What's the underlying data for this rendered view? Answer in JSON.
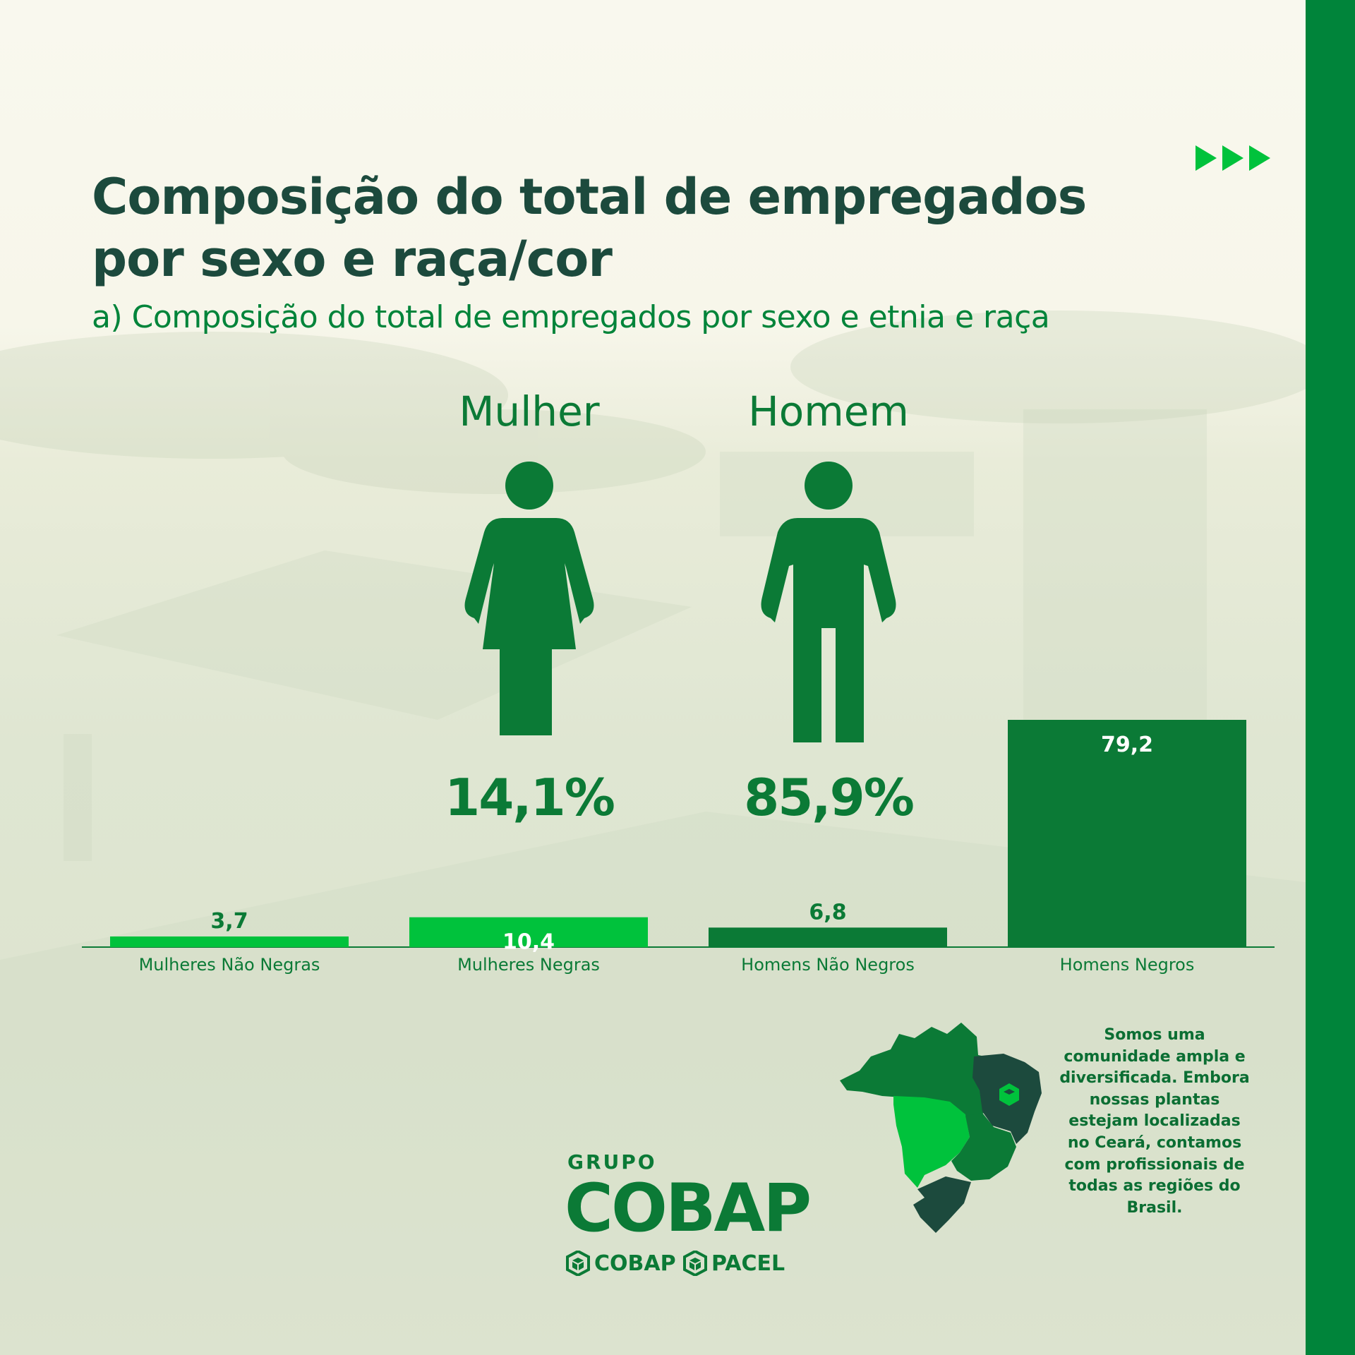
{
  "title": "Composição do total de empregados por sexo e raça/cor",
  "subtitle": "a) Composição do total de empregados por sexo e etnia e raça",
  "genders": [
    {
      "label": "Mulher",
      "percent_label": "14,1%",
      "value": 14.1,
      "icon": "woman-icon"
    },
    {
      "label": "Homem",
      "percent_label": "85,9%",
      "value": 85.9,
      "icon": "man-icon"
    }
  ],
  "chart_data": {
    "type": "bar",
    "categories": [
      "Mulheres Não Negras",
      "Mulheres Negras",
      "Homens Não Negros",
      "Homens Negros"
    ],
    "values": [
      3.7,
      10.4,
      6.8,
      79.2
    ],
    "value_labels": [
      "3,7",
      "10,4",
      "6,8",
      "79,2"
    ],
    "bar_colors": [
      "#00c23c",
      "#00c23c",
      "#0b7a36",
      "#0b7a36"
    ],
    "ylim": [
      0,
      79.2
    ],
    "grid": false
  },
  "logo": {
    "group": "GRUPO",
    "main": "COBAP",
    "brands": [
      "COBAP",
      "PACEL"
    ]
  },
  "side_text": "Somos uma comunidade ampla e diversificada. Embora nossas plantas estejam localizadas no Ceará, contamos com profissionais de todas as regiões do Brasil.",
  "colors": {
    "dark_green": "#1c4a3d",
    "green": "#0b7a36",
    "bright_green": "#00c23c",
    "band_green": "#00843a",
    "background": "#f9f8ee"
  },
  "icons": [
    "play-arrows-icon",
    "woman-icon",
    "man-icon",
    "brazil-map-icon",
    "cube-icon"
  ]
}
